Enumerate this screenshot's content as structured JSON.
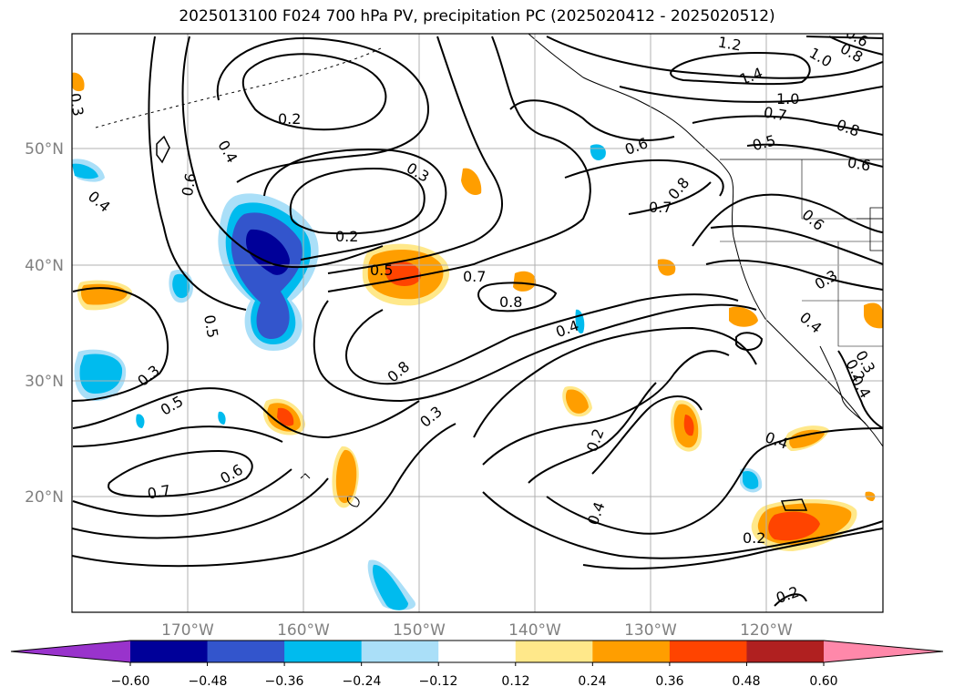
{
  "title": "2025013100 F024 700 hPa PV, precipitation PC (2025020412 - 2025020512)",
  "map": {
    "lat_labels": [
      "50°N",
      "40°N",
      "30°N",
      "20°N"
    ],
    "lon_labels": [
      "170°W",
      "160°W",
      "150°W",
      "140°W",
      "130°W",
      "120°W"
    ],
    "contour_labels": [
      "0.2",
      "0.4",
      "0.6",
      "0.4",
      "0.3",
      "0.2",
      "0.5",
      "0.7",
      "0.8",
      "0.5",
      "0.3",
      "0.5",
      "0.7",
      "0.6",
      "0.8",
      "0.3",
      "0.4",
      "0.2",
      "0.4",
      "0.2",
      "0.2",
      "0.4",
      "0.3",
      "0.6",
      "0.7",
      "0.8",
      "0.6",
      "0.5",
      "0.7",
      "1.0",
      "1.4",
      "1.2",
      "1.0",
      "0.8",
      "0.8",
      "0.6",
      "0.6",
      "0.4",
      "0.3",
      "0.4",
      "0.2",
      "0.3"
    ]
  },
  "colorbar": {
    "tick_labels": [
      "−0.60",
      "−0.48",
      "−0.36",
      "−0.24",
      "−0.12",
      "0.12",
      "0.24",
      "0.36",
      "0.48",
      "0.60"
    ],
    "colors": [
      "#9933cc",
      "#000099",
      "#3355cc",
      "#00bbee",
      "#aadff8",
      "#ffffff",
      "#ffe88a",
      "#ff9e00",
      "#ff4400",
      "#b02020",
      "#ff88aa"
    ]
  }
}
